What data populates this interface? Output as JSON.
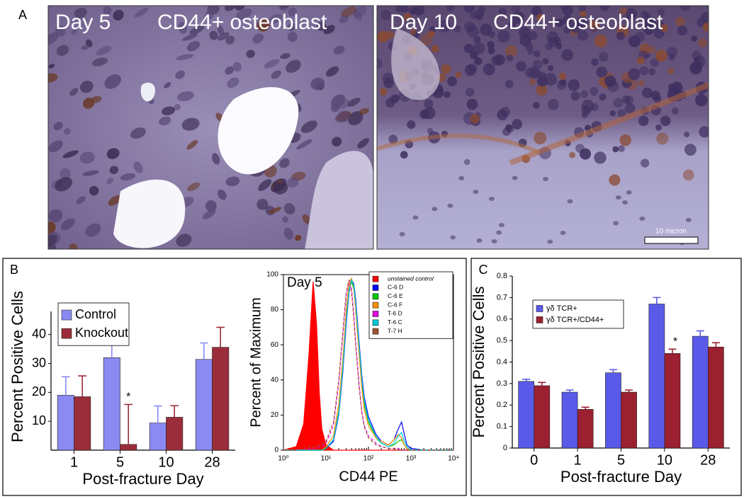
{
  "panel_labels": [
    "A",
    "B",
    "C"
  ],
  "micrographs": [
    {
      "label": "Day 5",
      "caption": "CD44+ osteoblast"
    },
    {
      "label": "Day 10",
      "caption": "CD44+ osteoblast",
      "scale_bar": "10 micron"
    }
  ],
  "chart_data": [
    {
      "type": "bar",
      "categories": [
        "1",
        "5",
        "10",
        "28"
      ],
      "series": [
        {
          "name": "Control",
          "color": "#8a8af2",
          "values": [
            19,
            32,
            9.4,
            31.4
          ],
          "errors": [
            6.4,
            6.2,
            5.9,
            5.7
          ]
        },
        {
          "name": "Knockout",
          "color": "#9b2d3a",
          "values": [
            18.5,
            2,
            11.4,
            35.6
          ],
          "errors": [
            7.2,
            13.8,
            4,
            6.9
          ]
        }
      ],
      "ylim": [
        0,
        48
      ],
      "yticks": [
        10,
        20,
        30,
        40
      ],
      "xlabel": "Post-fracture Day",
      "ylabel": "Percent Positive Cells",
      "legend": "upper left",
      "annotations": [
        {
          "text": "*",
          "category": "5",
          "series": "Knockout"
        }
      ]
    },
    {
      "type": "line",
      "title": "Day 5",
      "xlabel": "CD44 PE",
      "ylabel": "Percent of Maximum",
      "xscale": "log",
      "xlim": [
        1,
        10000
      ],
      "xticks": [
        {
          "value": 1,
          "label": "10⁰"
        },
        {
          "value": 10,
          "label": "10¹"
        },
        {
          "value": 100,
          "label": "10²"
        },
        {
          "value": 1000,
          "label": "10³"
        },
        {
          "value": 10000,
          "label": "10⁴"
        }
      ],
      "ylim": [
        0,
        100
      ],
      "yticks": [
        0,
        20,
        40,
        60,
        80,
        100
      ],
      "legend": "upper right",
      "x": [
        1,
        2,
        3,
        4,
        5,
        6,
        7,
        8,
        10,
        15,
        20,
        25,
        30,
        35,
        40,
        45,
        50,
        60,
        70,
        80,
        100,
        150,
        200,
        300,
        400,
        500,
        600,
        700,
        800,
        1000,
        2000,
        5000,
        10000
      ],
      "series": [
        {
          "name": "unstained control",
          "color": "#ff0000",
          "fill": true,
          "values": [
            0,
            2,
            15,
            55,
            96,
            72,
            32,
            12,
            3,
            0,
            0,
            0,
            0,
            0,
            0,
            0,
            0,
            0,
            0,
            0,
            0,
            0,
            0,
            0,
            0,
            0,
            0,
            0,
            0,
            0,
            0,
            0,
            0
          ]
        },
        {
          "name": "C-6 D",
          "color": "#0000ff",
          "values": [
            0,
            0,
            0,
            0,
            0,
            0,
            0,
            0,
            1,
            5,
            20,
            45,
            72,
            90,
            97,
            95,
            86,
            62,
            42,
            30,
            19,
            9,
            5,
            3,
            6,
            12,
            16,
            9,
            3,
            1,
            0,
            0,
            0
          ]
        },
        {
          "name": "C-6 E",
          "color": "#00c800",
          "values": [
            0,
            0,
            0,
            0,
            0,
            0,
            0,
            0,
            1,
            6,
            22,
            48,
            76,
            92,
            96,
            92,
            82,
            58,
            38,
            26,
            16,
            7,
            4,
            2,
            3,
            5,
            6,
            3,
            1,
            0,
            0,
            0,
            0
          ]
        },
        {
          "name": "C-6 F",
          "color": "#ff8c00",
          "values": [
            0,
            0,
            0,
            0,
            0,
            0,
            0,
            0,
            2,
            8,
            26,
            52,
            80,
            95,
            98,
            93,
            80,
            55,
            35,
            23,
            14,
            7,
            5,
            3,
            6,
            9,
            7,
            3,
            1,
            0,
            0,
            0,
            0
          ]
        },
        {
          "name": "T-6 D",
          "color": "#e000e0",
          "dash": true,
          "values": [
            0,
            0,
            0,
            1,
            1,
            1,
            2,
            2,
            4,
            14,
            38,
            66,
            88,
            97,
            92,
            78,
            62,
            38,
            22,
            14,
            8,
            4,
            2,
            1,
            1,
            1,
            0,
            0,
            0,
            0,
            0,
            0,
            0
          ]
        },
        {
          "name": "T-6 C",
          "color": "#00c8d8",
          "values": [
            0,
            0,
            0,
            0,
            0,
            0,
            0,
            0,
            1,
            6,
            21,
            47,
            74,
            91,
            97,
            94,
            84,
            60,
            40,
            28,
            17,
            8,
            4,
            2,
            4,
            8,
            10,
            5,
            2,
            0,
            0,
            0,
            0
          ]
        },
        {
          "name": "T-7 H",
          "color": "#a0522d",
          "dash": true,
          "values": [
            0,
            0,
            1,
            2,
            2,
            2,
            3,
            3,
            5,
            16,
            40,
            68,
            90,
            97,
            90,
            75,
            60,
            36,
            21,
            13,
            7,
            3,
            2,
            1,
            1,
            0,
            0,
            0,
            0,
            0,
            0,
            0,
            0
          ]
        }
      ]
    },
    {
      "type": "bar",
      "categories": [
        "0",
        "1",
        "5",
        "10",
        "28"
      ],
      "series": [
        {
          "name": "γδ TCR+",
          "color": "#5a5ae8",
          "values": [
            0.31,
            0.26,
            0.35,
            0.67,
            0.52
          ],
          "errors": [
            0.01,
            0.01,
            0.015,
            0.03,
            0.025
          ]
        },
        {
          "name": "γδ TCR+/CD44+",
          "color": "#9b2030",
          "values": [
            0.29,
            0.18,
            0.26,
            0.44,
            0.47
          ],
          "errors": [
            0.015,
            0.01,
            0.01,
            0.02,
            0.02
          ]
        }
      ],
      "ylim": [
        0,
        0.8
      ],
      "yticks": [
        0,
        0.1,
        0.2,
        0.3,
        0.4,
        0.5,
        0.6,
        0.7,
        0.8
      ],
      "xlabel": "Post-fracture Day",
      "ylabel": "Percent Positive Cells",
      "legend": "upper left",
      "annotations": [
        {
          "text": "*",
          "category": "10",
          "series": "γδ TCR+/CD44+"
        }
      ]
    }
  ]
}
